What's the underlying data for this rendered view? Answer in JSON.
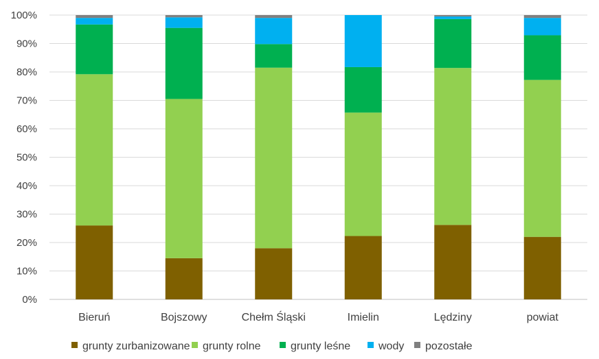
{
  "chart_data": {
    "type": "bar",
    "stacked": "percent",
    "categories": [
      "Bieruń",
      "Bojszowy",
      "Chełm Śląski",
      "Imielin",
      "Lędziny",
      "powiat"
    ],
    "series": [
      {
        "name": "grunty zurbanizowane",
        "color": "#7f6000",
        "values": [
          26,
          14.5,
          18,
          22.3,
          26.2,
          22
        ]
      },
      {
        "name": "grunty rolne",
        "color": "#92d050",
        "values": [
          53.2,
          56,
          63.5,
          43.4,
          55.2,
          55.2
        ]
      },
      {
        "name": "grunty leśne",
        "color": "#00b050",
        "values": [
          17.5,
          25,
          8.3,
          16,
          17.2,
          15.7
        ]
      },
      {
        "name": "wody",
        "color": "#00b0f0",
        "values": [
          2.3,
          3.7,
          9.2,
          18.3,
          0.9,
          6.1
        ]
      },
      {
        "name": "pozostałe",
        "color": "#808080",
        "values": [
          1,
          0.8,
          1,
          0,
          0.5,
          1
        ]
      }
    ],
    "y_ticks": [
      "0%",
      "10%",
      "20%",
      "30%",
      "40%",
      "50%",
      "60%",
      "70%",
      "80%",
      "90%",
      "100%"
    ],
    "ylim": [
      0,
      100
    ],
    "grid": true,
    "legend_position": "bottom"
  }
}
